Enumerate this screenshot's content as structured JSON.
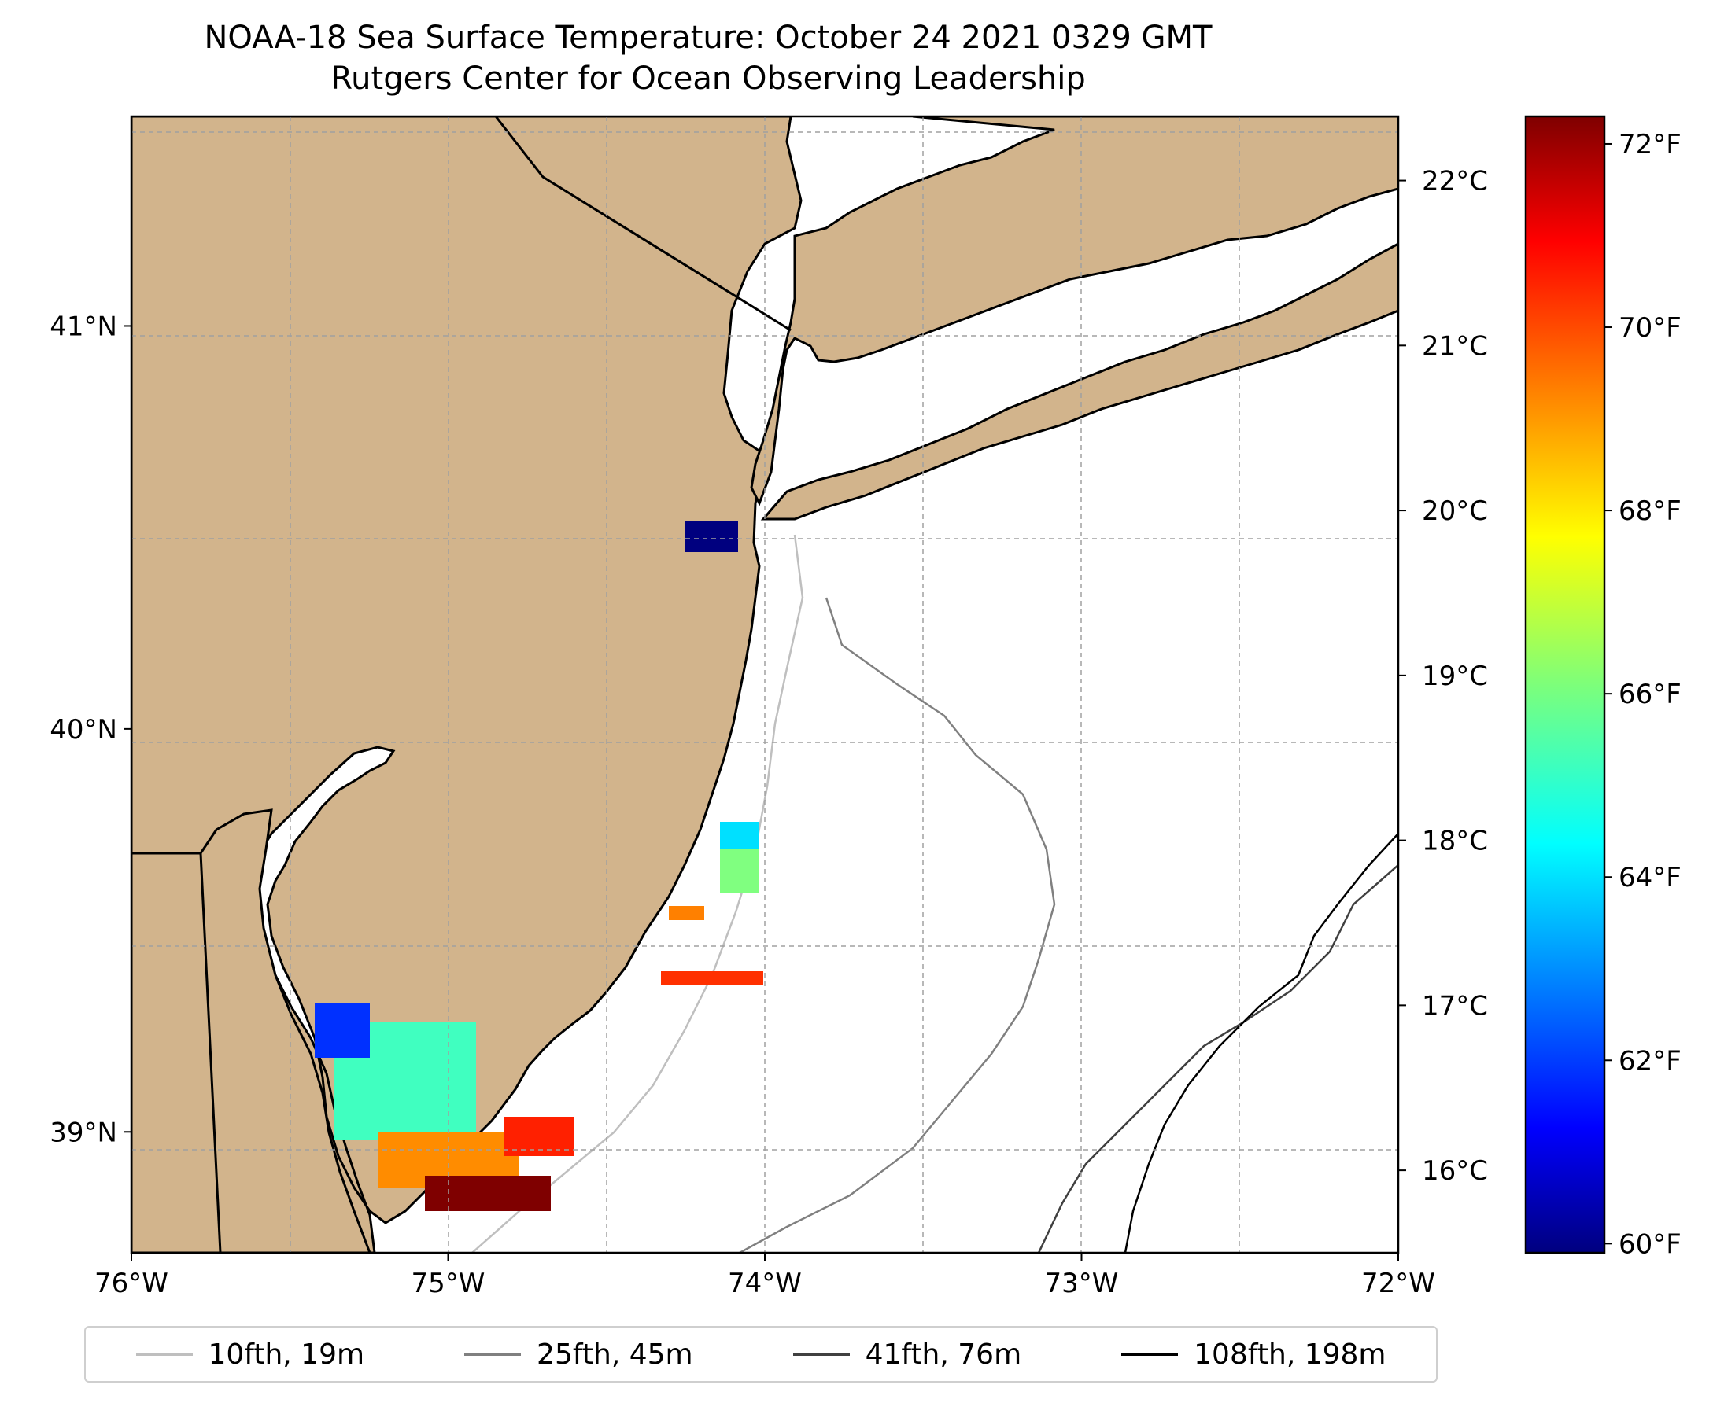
{
  "title": {
    "line1": "NOAA-18 Sea Surface Temperature: October 24 2021 0329 GMT",
    "line2": "Rutgers Center for Ocean Observing Leadership"
  },
  "map": {
    "lon_range": [
      -76,
      -72
    ],
    "lat_range": [
      38.7,
      41.52
    ],
    "land_color": "#d2b48c",
    "water_color": "#ffffff",
    "gridlines": true,
    "x_ticks": [
      {
        "lon": -76,
        "label": "76°W"
      },
      {
        "lon": -75,
        "label": "75°W"
      },
      {
        "lon": -74,
        "label": "74°W"
      },
      {
        "lon": -73,
        "label": "73°W"
      },
      {
        "lon": -72,
        "label": "72°W"
      }
    ],
    "y_ticks": [
      {
        "lat": 39,
        "label": "39°N"
      },
      {
        "lat": 40,
        "label": "40°N"
      },
      {
        "lat": 41,
        "label": "41°N"
      }
    ]
  },
  "colorbar": {
    "colormap": "jet",
    "range_f": [
      59.9,
      72.3
    ],
    "fahrenheit_ticks": [
      {
        "value": 60,
        "label": "60°F"
      },
      {
        "value": 62,
        "label": "62°F"
      },
      {
        "value": 64,
        "label": "64°F"
      },
      {
        "value": 66,
        "label": "66°F"
      },
      {
        "value": 68,
        "label": "68°F"
      },
      {
        "value": 70,
        "label": "70°F"
      },
      {
        "value": 72,
        "label": "72°F"
      }
    ],
    "celsius_ticks": [
      {
        "value": 16,
        "label": "16°C"
      },
      {
        "value": 17,
        "label": "17°C"
      },
      {
        "value": 18,
        "label": "18°C"
      },
      {
        "value": 19,
        "label": "19°C"
      },
      {
        "value": 20,
        "label": "20°C"
      },
      {
        "value": 21,
        "label": "21°C"
      },
      {
        "value": 22,
        "label": "22°C"
      }
    ]
  },
  "legend": {
    "placement": "bottom",
    "items": [
      {
        "label": "10fth, 19m",
        "color": "#bfbfbf"
      },
      {
        "label": "25fth, 45m",
        "color": "#808080"
      },
      {
        "label": "41fth, 76m",
        "color": "#404040"
      },
      {
        "label": "108fth, 198m",
        "color": "#000000"
      }
    ]
  }
}
